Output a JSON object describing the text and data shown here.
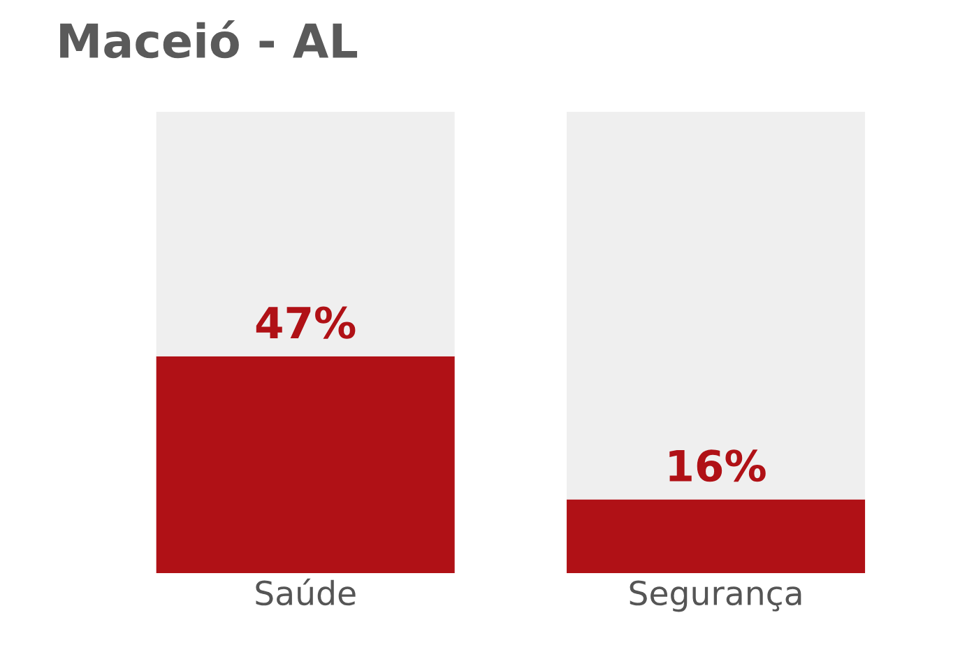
{
  "chart_data": {
    "type": "bar",
    "title": "Maceió - AL",
    "categories": [
      "Saúde",
      "Segurança"
    ],
    "stacked": true,
    "ylim": [
      0,
      100
    ],
    "tick_labels": "x",
    "grid": false,
    "legend": false,
    "series": [
      {
        "color": "#b01116",
        "values": [
          47,
          16
        ],
        "value_labels": [
          "47%",
          "16%"
        ]
      },
      {
        "color": "#efefef",
        "values": [
          53,
          84
        ]
      }
    ]
  }
}
